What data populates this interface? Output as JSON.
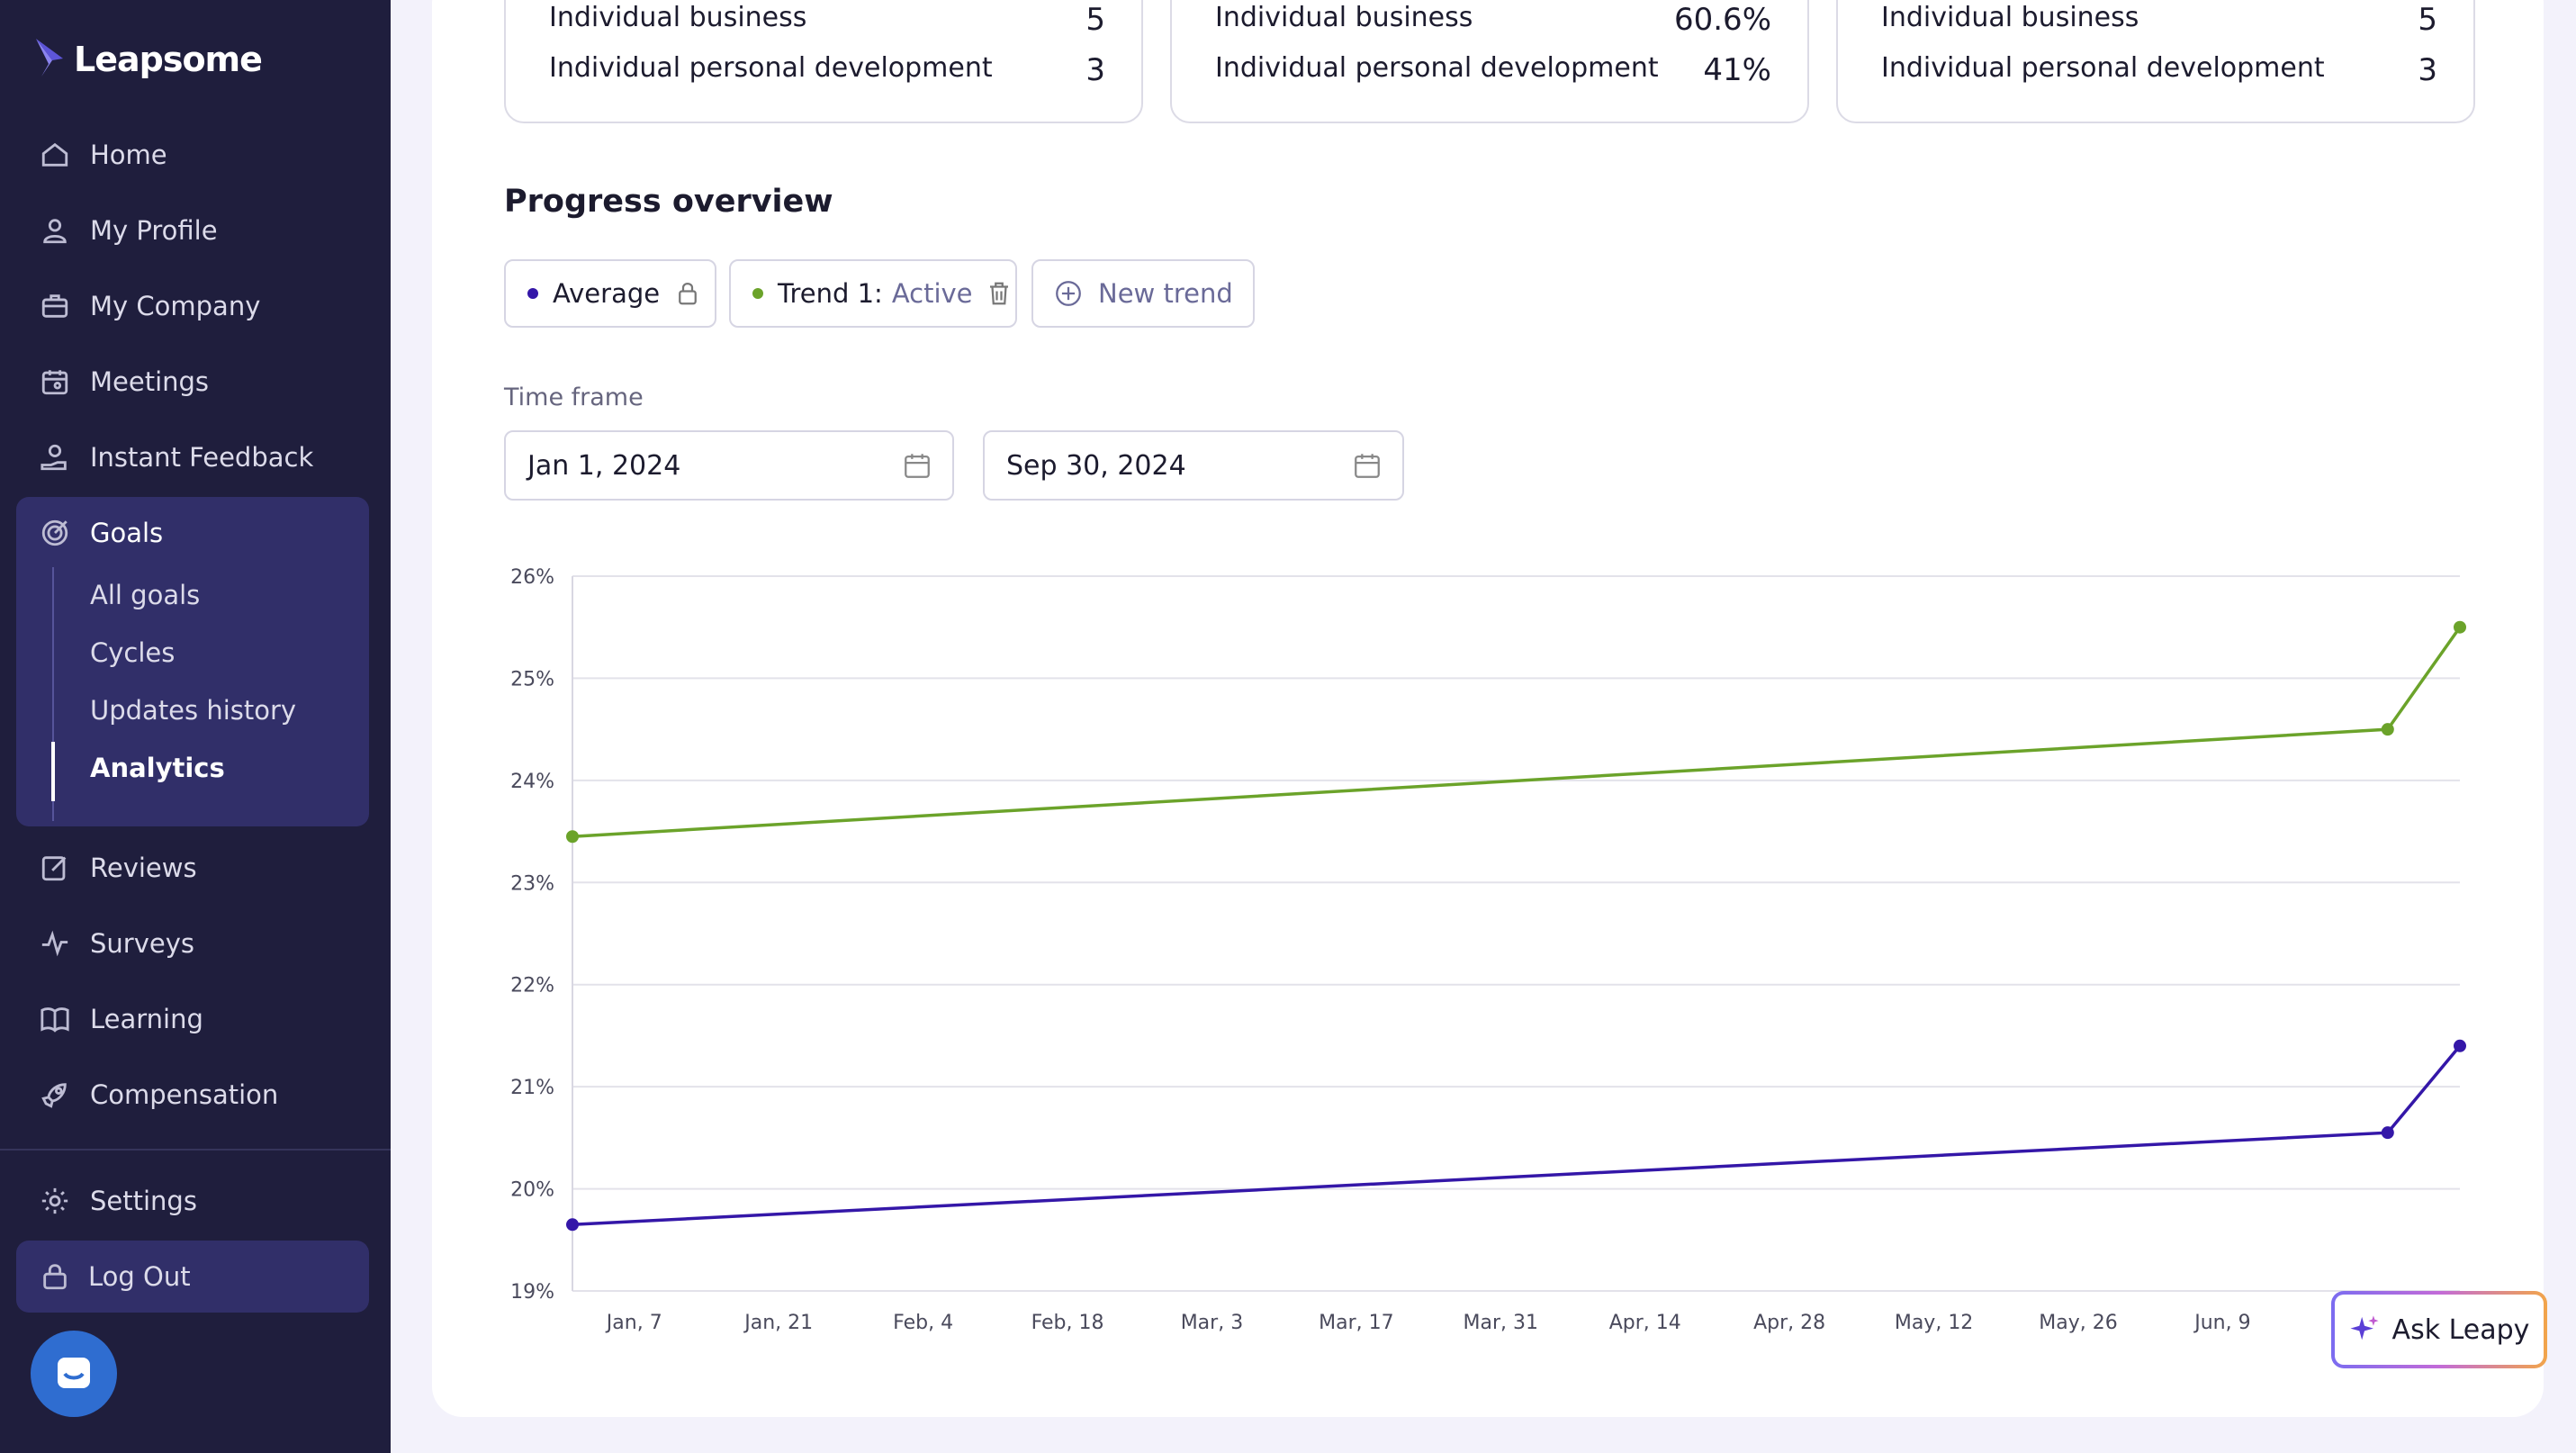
{
  "app": {
    "brand": "Leapsome"
  },
  "sidebar": {
    "items": [
      {
        "label": "Home",
        "icon": "home-icon"
      },
      {
        "label": "My Profile",
        "icon": "user-icon"
      },
      {
        "label": "My Company",
        "icon": "briefcase-icon"
      },
      {
        "label": "Meetings",
        "icon": "calendar-icon"
      },
      {
        "label": "Instant Feedback",
        "icon": "feedback-hand-icon"
      }
    ],
    "goals": {
      "label": "Goals",
      "icon": "target-icon",
      "sub_items": [
        "All goals",
        "Cycles",
        "Updates history",
        "Analytics"
      ],
      "active_sub_item": "Analytics"
    },
    "items_lower": [
      {
        "label": "Reviews",
        "icon": "edit-icon"
      },
      {
        "label": "Surveys",
        "icon": "pulse-icon"
      },
      {
        "label": "Learning",
        "icon": "book-icon"
      },
      {
        "label": "Compensation",
        "icon": "rocket-icon"
      }
    ],
    "settings": {
      "label": "Settings",
      "icon": "gear-icon"
    },
    "logout": {
      "label": "Log Out",
      "icon": "lock-icon"
    }
  },
  "stat_cards": [
    {
      "rows": [
        {
          "label": "Individual business",
          "value": "5"
        },
        {
          "label": "Individual personal development",
          "value": "3"
        }
      ]
    },
    {
      "rows": [
        {
          "label": "Individual business",
          "value": "60.6%"
        },
        {
          "label": "Individual personal development",
          "value": "41%"
        }
      ]
    },
    {
      "rows": [
        {
          "label": "Individual business",
          "value": "5"
        },
        {
          "label": "Individual personal development",
          "value": "3"
        }
      ]
    }
  ],
  "progress": {
    "title": "Progress overview",
    "chips": {
      "average": "Average",
      "trend_label": "Trend 1:",
      "trend_status": "Active",
      "new_trend": "New trend"
    },
    "timeframe_label": "Time frame",
    "start_date": "Jan 1, 2024",
    "end_date": "Sep 30, 2024"
  },
  "colors": {
    "average": "#3417a8",
    "trend": "#6ba32a",
    "sidebar_bg": "#1f1e3d",
    "accent": "#312f69"
  },
  "chart_data": {
    "type": "line",
    "y_ticks": [
      "26%",
      "25%",
      "24%",
      "23%",
      "22%",
      "21%",
      "20%",
      "19%"
    ],
    "ylim": [
      19,
      26
    ],
    "x_ticks": [
      "Jan, 7",
      "Jan, 21",
      "Feb, 4",
      "Feb, 18",
      "Mar, 3",
      "Mar, 17",
      "Mar, 31",
      "Apr, 14",
      "Apr, 28",
      "May, 12",
      "May, 26",
      "Jun, 9"
    ],
    "grid": true,
    "series": [
      {
        "name": "Trend 1",
        "x": [
          "2024-01-01",
          "2024-06-25",
          "2024-07-02"
        ],
        "values": [
          23.45,
          24.5,
          25.5
        ]
      },
      {
        "name": "Average",
        "x": [
          "2024-01-01",
          "2024-06-25",
          "2024-07-02"
        ],
        "values": [
          19.65,
          20.55,
          21.4
        ]
      }
    ]
  },
  "ask_leapy": {
    "label": "Ask Leapy"
  },
  "chat": {
    "icon": "chat-icon"
  }
}
